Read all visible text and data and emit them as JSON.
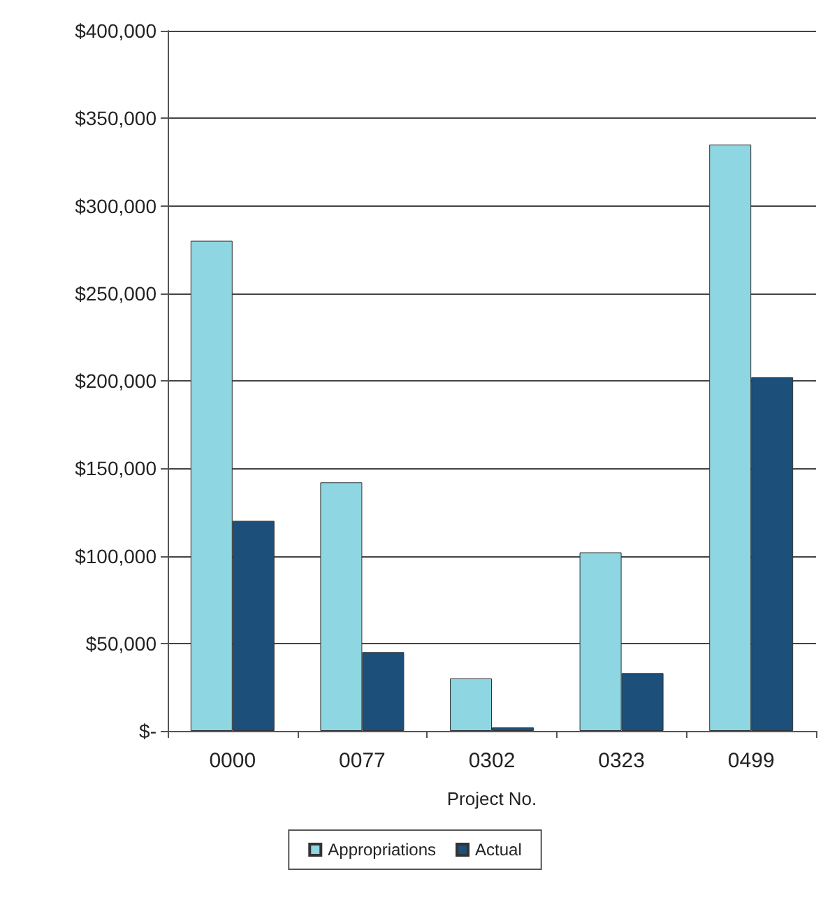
{
  "chart_data": {
    "type": "bar",
    "xlabel": "Project No.",
    "categories": [
      "0000",
      "0077",
      "0302",
      "0323",
      "0499"
    ],
    "series": [
      {
        "name": "Appropriations",
        "color": "#8fd6e3",
        "values": [
          280000,
          142000,
          30000,
          102000,
          335000
        ]
      },
      {
        "name": "Actual",
        "color": "#1c4f7a",
        "values": [
          120000,
          45000,
          2000,
          33000,
          202000
        ]
      }
    ],
    "ylim": [
      0,
      400000
    ],
    "yticks": [
      {
        "value": 0,
        "label": "$-"
      },
      {
        "value": 50000,
        "label": "$50,000"
      },
      {
        "value": 100000,
        "label": "$100,000"
      },
      {
        "value": 150000,
        "label": "$150,000"
      },
      {
        "value": 200000,
        "label": "$200,000"
      },
      {
        "value": 250000,
        "label": "$250,000"
      },
      {
        "value": 300000,
        "label": "$300,000"
      },
      {
        "value": 350000,
        "label": "$350,000"
      },
      {
        "value": 400000,
        "label": "$400,000"
      }
    ],
    "grid": "y",
    "legend": "bottom"
  }
}
